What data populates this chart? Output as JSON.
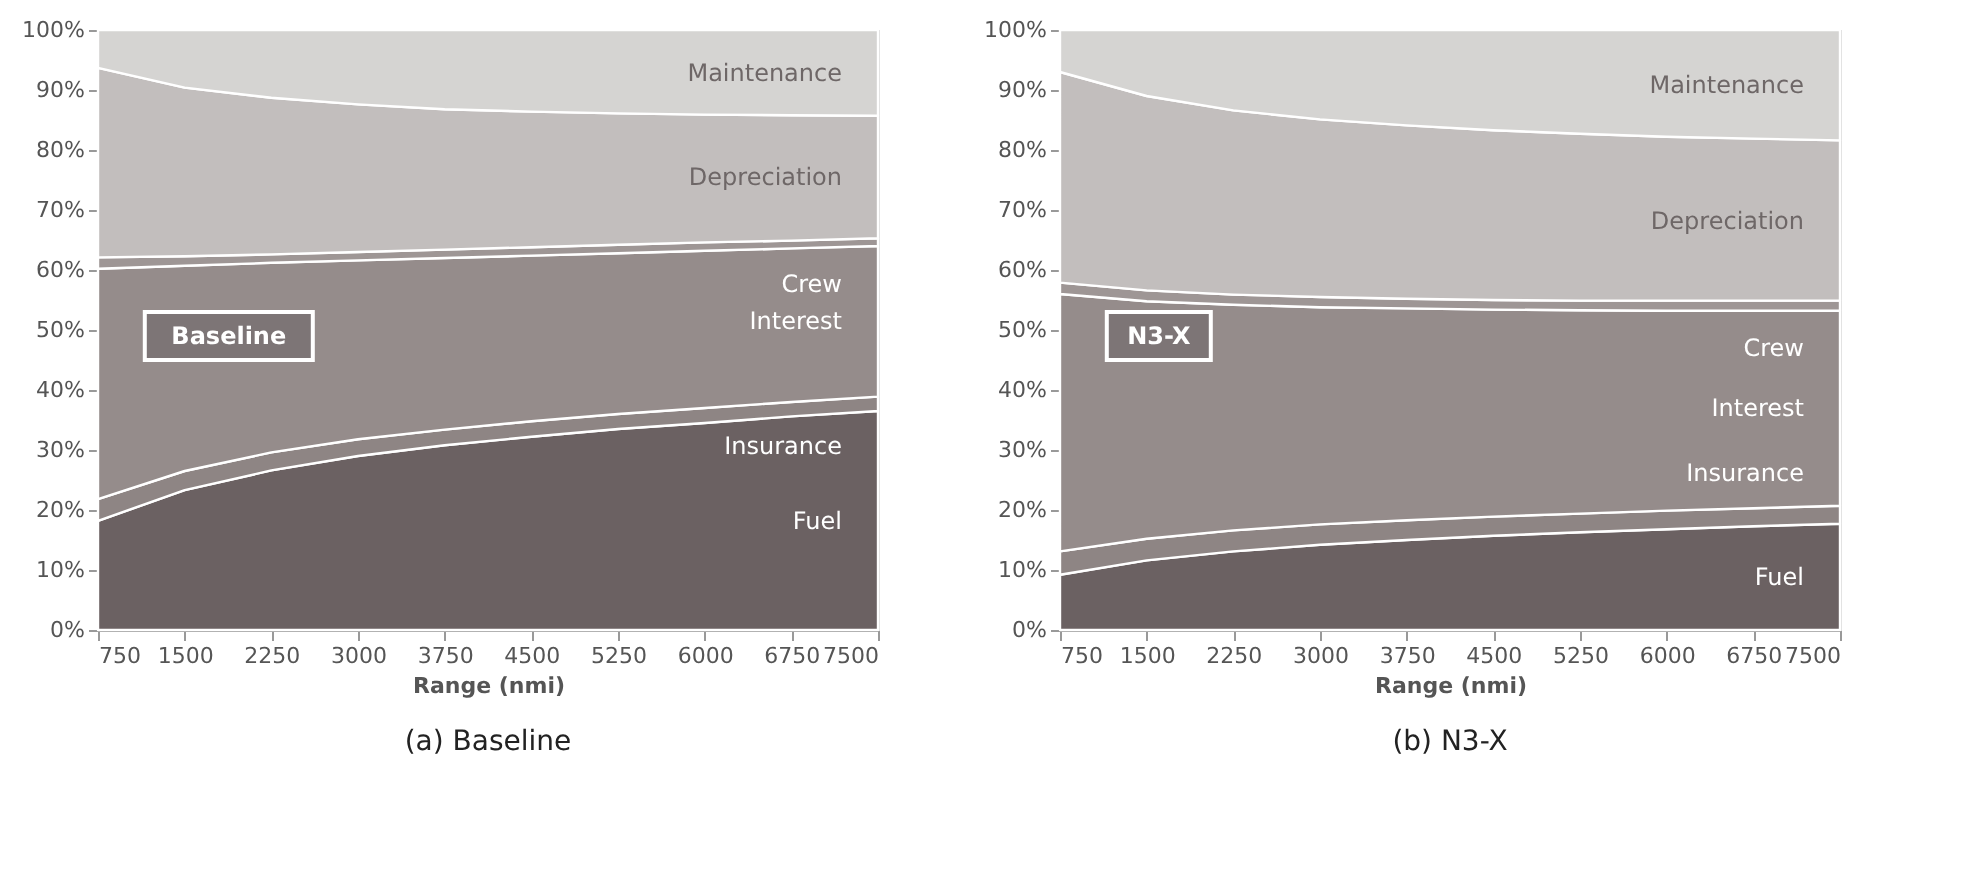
{
  "chart_data": [
    {
      "type": "area",
      "stacked": true,
      "title": "(a) Baseline",
      "xlabel": "Range (nmi)",
      "annotations": [
        "Baseline"
      ],
      "legend": false,
      "x": [
        750,
        1500,
        2250,
        3000,
        3750,
        4500,
        5250,
        6000,
        6750,
        7500
      ],
      "xlim": [
        750,
        7500
      ],
      "xticks": [
        750,
        1500,
        2250,
        3000,
        3750,
        4500,
        5250,
        6000,
        6750,
        7500
      ],
      "ylim": [
        0,
        100
      ],
      "yticks": [
        {
          "value": 0,
          "label": "0%"
        },
        {
          "value": 10,
          "label": "10%"
        },
        {
          "value": 20,
          "label": "20%"
        },
        {
          "value": 30,
          "label": "30%"
        },
        {
          "value": 40,
          "label": "40%"
        },
        {
          "value": 50,
          "label": "50%"
        },
        {
          "value": 60,
          "label": "60%"
        },
        {
          "value": 70,
          "label": "70%"
        },
        {
          "value": 80,
          "label": "80%"
        },
        {
          "value": 90,
          "label": "90%"
        },
        {
          "value": 100,
          "label": "100%"
        }
      ],
      "series": [
        {
          "name": "Fuel",
          "color": "#6b6162",
          "values": [
            18.2,
            23.3,
            26.6,
            29.0,
            30.8,
            32.2,
            33.5,
            34.5,
            35.6,
            36.5
          ]
        },
        {
          "name": "Insurance",
          "color": "#8e8584",
          "values": [
            3.6,
            3.2,
            3.0,
            2.8,
            2.6,
            2.6,
            2.5,
            2.5,
            2.4,
            2.4
          ]
        },
        {
          "name": "Interest",
          "color": "#958c8b",
          "values": [
            38.4,
            34.2,
            31.6,
            29.8,
            28.6,
            27.6,
            26.8,
            26.2,
            25.6,
            25.1
          ]
        },
        {
          "name": "Crew",
          "color": "#9e9695",
          "values": [
            1.9,
            1.6,
            1.4,
            1.4,
            1.4,
            1.4,
            1.4,
            1.4,
            1.3,
            1.3
          ]
        },
        {
          "name": "Depreciation",
          "color": "#c2bebd",
          "values": [
            31.6,
            28.1,
            26.1,
            24.6,
            23.4,
            22.6,
            21.9,
            21.3,
            20.9,
            20.4
          ]
        },
        {
          "name": "Maintenance",
          "color": "#d5d4d2",
          "values": [
            6.3,
            9.6,
            11.3,
            12.4,
            13.2,
            13.6,
            13.9,
            14.1,
            14.2,
            14.3
          ]
        }
      ]
    },
    {
      "type": "area",
      "stacked": true,
      "title": "(b) N3-X",
      "xlabel": "Range (nmi)",
      "annotations": [
        "N3-X"
      ],
      "legend": false,
      "x": [
        750,
        1500,
        2250,
        3000,
        3750,
        4500,
        5250,
        6000,
        6750,
        7500
      ],
      "xlim": [
        750,
        7500
      ],
      "xticks": [
        750,
        1500,
        2250,
        3000,
        3750,
        4500,
        5250,
        6000,
        6750,
        7500
      ],
      "ylim": [
        0,
        100
      ],
      "yticks": [
        {
          "value": 0,
          "label": "0%"
        },
        {
          "value": 10,
          "label": "10%"
        },
        {
          "value": 20,
          "label": "20%"
        },
        {
          "value": 30,
          "label": "30%"
        },
        {
          "value": 40,
          "label": "40%"
        },
        {
          "value": 50,
          "label": "50%"
        },
        {
          "value": 60,
          "label": "60%"
        },
        {
          "value": 70,
          "label": "70%"
        },
        {
          "value": 80,
          "label": "80%"
        },
        {
          "value": 90,
          "label": "90%"
        },
        {
          "value": 100,
          "label": "100%"
        }
      ],
      "series": [
        {
          "name": "Fuel",
          "color": "#6b6162",
          "values": [
            9.2,
            11.6,
            13.1,
            14.2,
            15.0,
            15.7,
            16.3,
            16.8,
            17.3,
            17.7
          ]
        },
        {
          "name": "Insurance",
          "color": "#8e8584",
          "values": [
            3.9,
            3.6,
            3.5,
            3.4,
            3.3,
            3.2,
            3.1,
            3.1,
            3.0,
            3.0
          ]
        },
        {
          "name": "Interest",
          "color": "#958c8b",
          "values": [
            42.9,
            39.6,
            37.6,
            36.2,
            35.3,
            34.5,
            33.9,
            33.3,
            32.9,
            32.5
          ]
        },
        {
          "name": "Crew",
          "color": "#9e9695",
          "values": [
            1.9,
            1.8,
            1.7,
            1.7,
            1.6,
            1.6,
            1.6,
            1.7,
            1.7,
            1.7
          ]
        },
        {
          "name": "Depreciation",
          "color": "#c2bebd",
          "values": [
            35.1,
            32.4,
            30.7,
            29.6,
            28.9,
            28.3,
            27.8,
            27.3,
            27.0,
            26.7
          ]
        },
        {
          "name": "Maintenance",
          "color": "#d5d4d2",
          "values": [
            7.0,
            11.0,
            13.4,
            14.9,
            15.9,
            16.7,
            17.3,
            17.8,
            18.1,
            18.4
          ]
        }
      ]
    }
  ]
}
